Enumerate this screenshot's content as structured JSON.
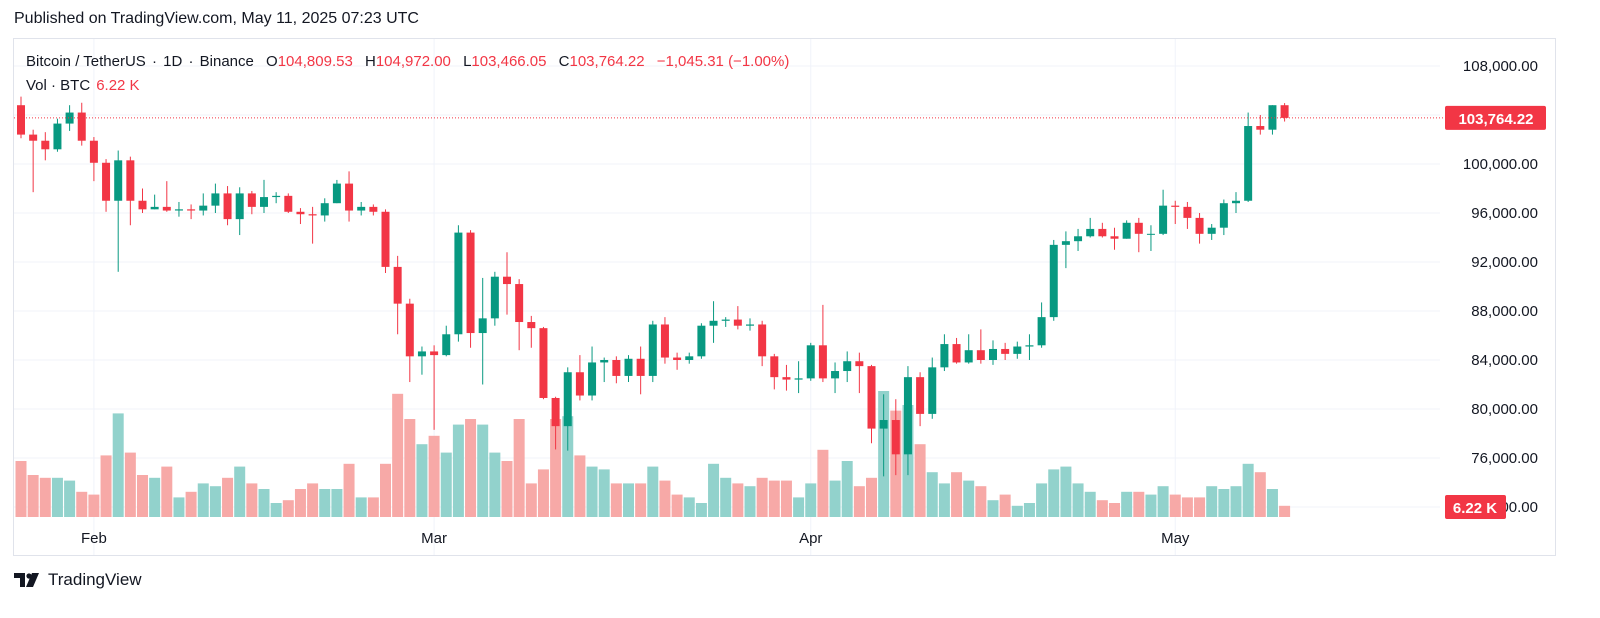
{
  "header": {
    "published": "Published on TradingView.com, May 11, 2025 07:23 UTC"
  },
  "legend": {
    "symbol": "Bitcoin / TetherUS",
    "interval": "1D",
    "exchange": "Binance",
    "open_label": "O",
    "open": "104,809.53",
    "high_label": "H",
    "high": "104,972.00",
    "low_label": "L",
    "low": "103,466.05",
    "close_label": "C",
    "close": "103,764.22",
    "change": "−1,045.31 (−1.00%)",
    "volume_label": "Vol · BTC",
    "volume": "6.22 K"
  },
  "badges": {
    "last_price": "103,764.22",
    "last_volume": "6.22 K"
  },
  "footer": {
    "brand": "TradingView"
  },
  "colors": {
    "up": "#089981",
    "down": "#f23645",
    "vol_up": "#92d2cc",
    "vol_down": "#f7a9a7",
    "grid": "#f0f3fa"
  },
  "chart_data": {
    "type": "candlestick",
    "y_ticks": [
      "108,000.00",
      "104,000.00",
      "100,000.00",
      "96,000.00",
      "92,000.00",
      "88,000.00",
      "84,000.00",
      "80,000.00",
      "76,000.00",
      "72,000.00"
    ],
    "y_tick_values": [
      108000,
      104000,
      100000,
      96000,
      92000,
      88000,
      84000,
      80000,
      76000,
      72000
    ],
    "ylim": [
      70500,
      111500
    ],
    "x_labels": [
      {
        "label": "Feb",
        "index": 6
      },
      {
        "label": "Mar",
        "index": 34
      },
      {
        "label": "Apr",
        "index": 65
      },
      {
        "label": "May",
        "index": 95
      }
    ],
    "last_price": 103764.22,
    "candles": [
      [
        104800,
        102400,
        105500,
        102100,
        2.0
      ],
      [
        102400,
        101900,
        102800,
        97700,
        1.5
      ],
      [
        101900,
        101200,
        102600,
        100300,
        1.4
      ],
      [
        101200,
        103300,
        103700,
        101000,
        1.4
      ],
      [
        103300,
        104200,
        104800,
        102700,
        1.3
      ],
      [
        104200,
        101900,
        105000,
        101500,
        0.9
      ],
      [
        101900,
        100100,
        102200,
        98600,
        0.8
      ],
      [
        100100,
        97000,
        100400,
        96100,
        2.2
      ],
      [
        97000,
        100300,
        101100,
        91200,
        3.7
      ],
      [
        100300,
        97000,
        100600,
        95000,
        2.3
      ],
      [
        97000,
        96300,
        98000,
        96000,
        1.5
      ],
      [
        96300,
        96500,
        97500,
        96300,
        1.4
      ],
      [
        96500,
        96200,
        98600,
        96100,
        1.8
      ],
      [
        96200,
        96300,
        96900,
        95700,
        0.7
      ],
      [
        96300,
        96200,
        96700,
        95500,
        0.9
      ],
      [
        96200,
        96600,
        97600,
        95800,
        1.2
      ],
      [
        96600,
        97600,
        98400,
        96000,
        1.1
      ],
      [
        97600,
        95500,
        98200,
        95000,
        1.4
      ],
      [
        95500,
        97600,
        98100,
        94200,
        1.8
      ],
      [
        97600,
        96500,
        97800,
        95900,
        1.2
      ],
      [
        96500,
        97300,
        98700,
        96000,
        1.0
      ],
      [
        97300,
        97400,
        97700,
        96800,
        0.5
      ],
      [
        97400,
        96100,
        97600,
        96000,
        0.6
      ],
      [
        96100,
        95900,
        96400,
        95100,
        1.0
      ],
      [
        95900,
        95800,
        96500,
        93500,
        1.2
      ],
      [
        95800,
        96800,
        97200,
        95300,
        1.0
      ],
      [
        96800,
        98400,
        98700,
        96800,
        1.0
      ],
      [
        98400,
        96200,
        99400,
        95300,
        1.9
      ],
      [
        96200,
        96500,
        96900,
        95800,
        0.7
      ],
      [
        96500,
        96100,
        96700,
        95800,
        0.7
      ],
      [
        96100,
        91600,
        96300,
        91100,
        1.9
      ],
      [
        91600,
        88600,
        92500,
        86100,
        4.4
      ],
      [
        88600,
        84300,
        89000,
        82200,
        3.5
      ],
      [
        84300,
        84700,
        85100,
        82800,
        2.6
      ],
      [
        84700,
        84400,
        85200,
        78300,
        2.9
      ],
      [
        84400,
        86100,
        86800,
        84300,
        2.3
      ],
      [
        86100,
        94400,
        95000,
        85500,
        3.3
      ],
      [
        94400,
        86200,
        94600,
        85000,
        3.5
      ],
      [
        86200,
        87400,
        90700,
        82000,
        3.3
      ],
      [
        87400,
        90800,
        91200,
        86800,
        2.3
      ],
      [
        90800,
        90200,
        92800,
        87700,
        2.0
      ],
      [
        90200,
        87100,
        90600,
        84800,
        3.5
      ],
      [
        87100,
        86600,
        87600,
        85000,
        1.2
      ],
      [
        86600,
        80900,
        86700,
        80800,
        1.7
      ],
      [
        80900,
        78600,
        81000,
        76700,
        3.5
      ],
      [
        78600,
        83000,
        83400,
        76600,
        3.6
      ],
      [
        83000,
        81100,
        84400,
        80700,
        2.2
      ],
      [
        81100,
        83800,
        85100,
        80700,
        1.8
      ],
      [
        83800,
        84000,
        84200,
        82200,
        1.7
      ],
      [
        84000,
        82700,
        84300,
        82100,
        1.2
      ],
      [
        82700,
        84100,
        84400,
        82200,
        1.2
      ],
      [
        84100,
        82700,
        85100,
        81200,
        1.2
      ],
      [
        82700,
        86900,
        87200,
        82200,
        1.8
      ],
      [
        86900,
        84200,
        87500,
        83700,
        1.3
      ],
      [
        84200,
        84000,
        84600,
        83200,
        0.8
      ],
      [
        84000,
        84300,
        84600,
        83700,
        0.7
      ],
      [
        84300,
        86800,
        87000,
        84100,
        0.5
      ],
      [
        86800,
        87200,
        88800,
        85400,
        1.9
      ],
      [
        87200,
        87300,
        87500,
        86700,
        1.4
      ],
      [
        87300,
        86800,
        88400,
        86500,
        1.2
      ],
      [
        86800,
        86900,
        87400,
        86400,
        1.1
      ],
      [
        86900,
        84300,
        87200,
        83500,
        1.4
      ],
      [
        84300,
        82600,
        84500,
        81600,
        1.3
      ],
      [
        82600,
        82400,
        83600,
        81500,
        1.3
      ],
      [
        82400,
        82500,
        83900,
        81300,
        0.7
      ],
      [
        82500,
        85200,
        85400,
        82300,
        1.2
      ],
      [
        85200,
        82500,
        88500,
        82200,
        2.4
      ],
      [
        82500,
        83100,
        83800,
        81300,
        1.3
      ],
      [
        83100,
        83900,
        84700,
        82200,
        2.0
      ],
      [
        83900,
        83500,
        84600,
        81300,
        1.1
      ],
      [
        83500,
        78400,
        83600,
        77200,
        1.4
      ],
      [
        78400,
        79100,
        81200,
        74500,
        4.5
      ],
      [
        79100,
        76300,
        80800,
        74600,
        3.8
      ],
      [
        76300,
        82600,
        83500,
        74600,
        4.0
      ],
      [
        82600,
        79600,
        83000,
        78600,
        2.6
      ],
      [
        79600,
        83400,
        84200,
        79200,
        1.6
      ],
      [
        83400,
        85300,
        86100,
        83100,
        1.2
      ],
      [
        85300,
        83800,
        85800,
        83700,
        1.6
      ],
      [
        83800,
        84800,
        86100,
        83700,
        1.3
      ],
      [
        84800,
        84000,
        86500,
        83700,
        1.1
      ],
      [
        84000,
        84900,
        85600,
        83600,
        0.6
      ],
      [
        84900,
        84500,
        85400,
        84000,
        0.8
      ],
      [
        84500,
        85100,
        85500,
        84100,
        0.4
      ],
      [
        85100,
        85200,
        86100,
        84000,
        0.5
      ],
      [
        85200,
        87500,
        88700,
        85000,
        1.2
      ],
      [
        87500,
        93400,
        93800,
        87200,
        1.7
      ],
      [
        93400,
        93700,
        94500,
        91500,
        1.8
      ],
      [
        93700,
        94100,
        94700,
        92900,
        1.2
      ],
      [
        94100,
        94700,
        95600,
        94000,
        0.9
      ],
      [
        94700,
        94100,
        95200,
        94000,
        0.6
      ],
      [
        94100,
        93900,
        94800,
        93000,
        0.5
      ],
      [
        93900,
        95200,
        95400,
        93900,
        0.9
      ],
      [
        95200,
        94300,
        95600,
        92800,
        0.9
      ],
      [
        94300,
        94300,
        95000,
        92900,
        0.8
      ],
      [
        94300,
        96600,
        97900,
        94200,
        1.1
      ],
      [
        96600,
        96500,
        97000,
        95100,
        0.8
      ],
      [
        96500,
        95600,
        96900,
        94700,
        0.7
      ],
      [
        95600,
        94300,
        96000,
        93500,
        0.7
      ],
      [
        94300,
        94800,
        95100,
        93800,
        1.1
      ],
      [
        94800,
        96800,
        97100,
        94200,
        1.0
      ],
      [
        96800,
        97000,
        97700,
        96000,
        1.1
      ],
      [
        97000,
        103100,
        104200,
        96900,
        1.9
      ],
      [
        103100,
        102800,
        104000,
        102400,
        1.6
      ],
      [
        102800,
        104800,
        104800,
        102400,
        1.0
      ],
      [
        104800,
        103764.22,
        104972,
        103466.05,
        0.4
      ]
    ]
  }
}
